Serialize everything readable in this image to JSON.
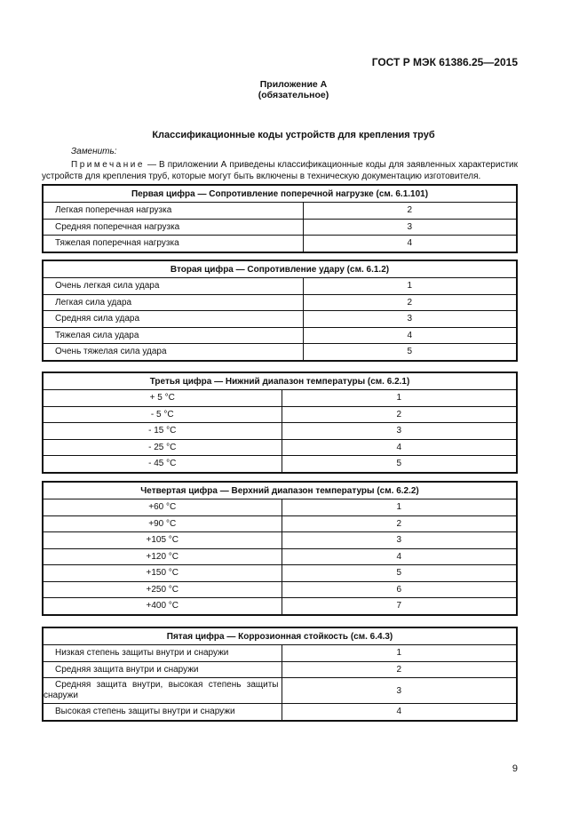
{
  "header": {
    "doc_code": "ГОСТ Р МЭК 61386.25—2015"
  },
  "annex": {
    "title": "Приложение А",
    "status": "(обязательное)"
  },
  "section_title": "Классификационные коды устройств для крепления труб",
  "replace_label": "Заменить:",
  "note": {
    "label": "Примечание",
    "text": " — В приложении А приведены классификационные коды для заявленных характеристик устройств для крепления труб, которые могут быть включены в техническую документацию изготовителя."
  },
  "tables": [
    {
      "header": "Первая цифра — Сопротивление поперечной нагрузке (см. 6.1.101)",
      "align": "l",
      "rows": [
        [
          "Легкая поперечная нагрузка",
          "2"
        ],
        [
          "Средняя поперечная нагрузка",
          "3"
        ],
        [
          "Тяжелая поперечная нагрузка",
          "4"
        ]
      ]
    },
    {
      "header": "Вторая цифра — Сопротивление удару (см. 6.1.2)",
      "align": "l",
      "rows": [
        [
          "Очень легкая сила удара",
          "1"
        ],
        [
          "Легкая сила удара",
          "2"
        ],
        [
          "Средняя сила удара",
          "3"
        ],
        [
          "Тяжелая сила удара",
          "4"
        ],
        [
          "Очень тяжелая сила удара",
          "5"
        ]
      ]
    },
    {
      "header": "Третья цифра — Нижний диапазон температуры (см. 6.2.1)",
      "align": "c",
      "rows": [
        [
          "+ 5 °C",
          "1"
        ],
        [
          "- 5 °C",
          "2"
        ],
        [
          "- 15 °C",
          "3"
        ],
        [
          "- 25 °C",
          "4"
        ],
        [
          "- 45 °C",
          "5"
        ]
      ]
    },
    {
      "header": "Четвертая цифра — Верхний диапазон температуры (см. 6.2.2)",
      "align": "c",
      "rows": [
        [
          "+60 °C",
          "1"
        ],
        [
          "+90 °C",
          "2"
        ],
        [
          "+105 °C",
          "3"
        ],
        [
          "+120 °C",
          "4"
        ],
        [
          "+150 °C",
          "5"
        ],
        [
          "+250 °C",
          "6"
        ],
        [
          "+400 °C",
          "7"
        ]
      ]
    },
    {
      "header": "Пятая цифра — Коррозионная стойкость (см. 6.4.3)",
      "align": "l",
      "rows": [
        [
          "Низкая степень защиты внутри и снаружи",
          "1"
        ],
        [
          "Средняя защита внутри и снаружи",
          "2"
        ],
        [
          "Средняя защита внутри, высокая степень защиты снаружи",
          "3"
        ],
        [
          "Высокая степень защиты внутри и снаружи",
          "4"
        ]
      ]
    }
  ],
  "page_number": "9"
}
